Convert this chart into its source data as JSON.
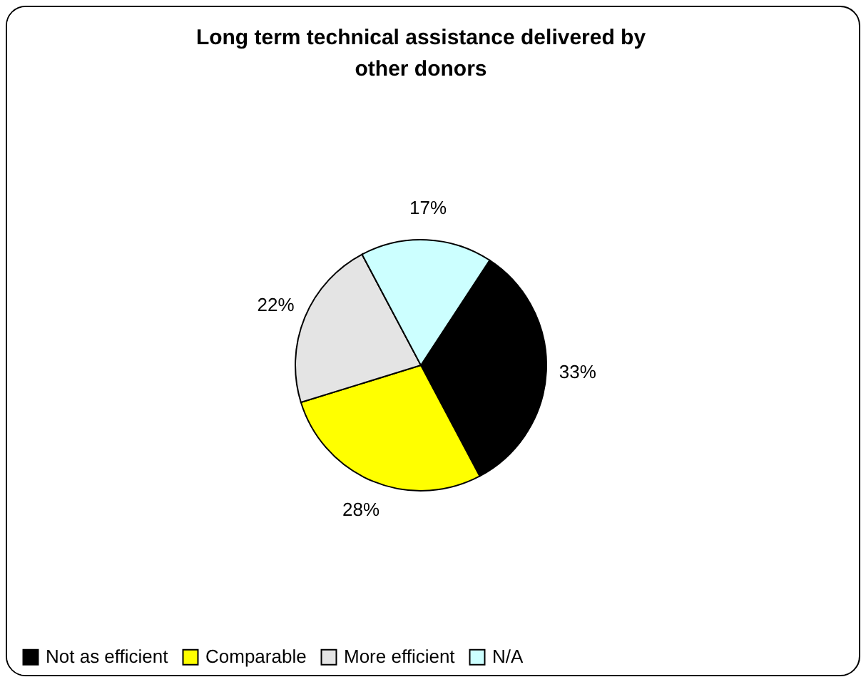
{
  "chart_data": {
    "type": "pie",
    "title": "Long term technical assistance delivered by other donors",
    "categories": [
      "Not as efficient",
      "Comparable",
      "More efficient",
      "N/A"
    ],
    "values": [
      33,
      28,
      22,
      17
    ],
    "colors": [
      "#000000",
      "#ffff00",
      "#e4e4e4",
      "#ccffff"
    ],
    "value_labels": [
      "33%",
      "28%",
      "22%",
      "17%"
    ],
    "legend": "bottom"
  }
}
